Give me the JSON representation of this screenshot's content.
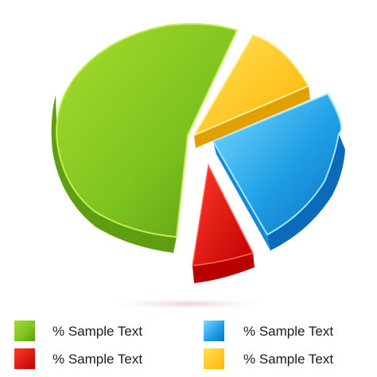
{
  "chart_data": {
    "type": "pie",
    "title": "",
    "legend_position": "bottom",
    "slices": [
      {
        "label": "% Sample Text",
        "value": 55,
        "color": "#7cc21e"
      },
      {
        "label": "% Sample Text",
        "value": 12,
        "color": "#ffc20e"
      },
      {
        "label": "% Sample Text",
        "value": 24,
        "color": "#1fa0e6"
      },
      {
        "label": "% Sample Text",
        "value": 9,
        "color": "#e01010"
      }
    ],
    "legend": [
      {
        "label": "% Sample Text",
        "color": "#7cc21e"
      },
      {
        "label": "% Sample Text",
        "color": "#1fa0e6"
      },
      {
        "label": "% Sample Text",
        "color": "#e01010"
      },
      {
        "label": "% Sample Text",
        "color": "#ffc20e"
      }
    ]
  }
}
